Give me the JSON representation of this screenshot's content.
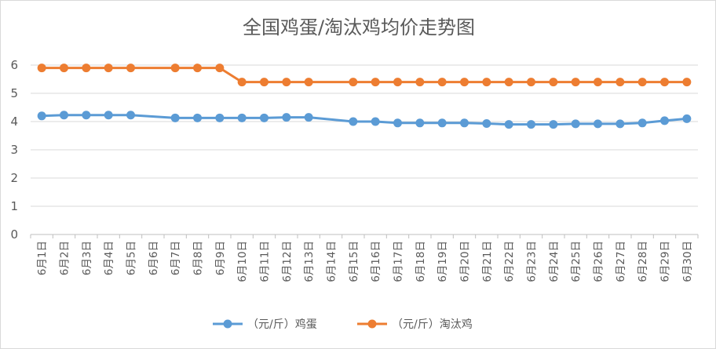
{
  "chart_data": {
    "type": "line",
    "title": "全国鸡蛋/淘汰鸡均价走势图",
    "xlabel": "",
    "ylabel": "",
    "ylim": [
      0,
      6
    ],
    "yticks": [
      0,
      1,
      2,
      3,
      4,
      5,
      6
    ],
    "grid": true,
    "legend_position": "bottom",
    "categories": [
      "6月1日",
      "6月2日",
      "6月3日",
      "6月4日",
      "6月5日",
      "6月6日",
      "6月7日",
      "6月8日",
      "6月9日",
      "6月10日",
      "6月11日",
      "6月12日",
      "6月13日",
      "6月14日",
      "6月15日",
      "6月16日",
      "6月17日",
      "6月18日",
      "6月19日",
      "6月20日",
      "6月21日",
      "6月22日",
      "6月23日",
      "6月24日",
      "6月25日",
      "6月26日",
      "6月27日",
      "6月28日",
      "6月29日",
      "6月30日"
    ],
    "series": [
      {
        "name": "（元/斤）鸡蛋",
        "color": "#5b9bd5",
        "values": [
          4.2,
          4.23,
          4.23,
          4.23,
          4.23,
          null,
          4.13,
          4.13,
          4.13,
          4.13,
          4.13,
          4.15,
          4.15,
          null,
          4.0,
          4.0,
          3.95,
          3.95,
          3.95,
          3.95,
          3.93,
          3.9,
          3.9,
          3.9,
          3.92,
          3.92,
          3.92,
          3.95,
          4.03,
          4.1
        ]
      },
      {
        "name": "（元/斤）淘汰鸡",
        "color": "#ed7d31",
        "values": [
          5.9,
          5.9,
          5.9,
          5.9,
          5.9,
          null,
          5.9,
          5.9,
          5.9,
          5.4,
          5.4,
          5.4,
          5.4,
          null,
          5.4,
          5.4,
          5.4,
          5.4,
          5.4,
          5.4,
          5.4,
          5.4,
          5.4,
          5.4,
          5.4,
          5.4,
          5.4,
          5.4,
          5.4,
          5.4
        ]
      }
    ]
  }
}
